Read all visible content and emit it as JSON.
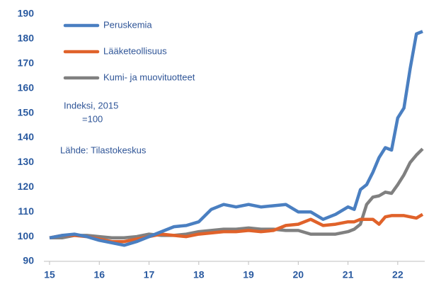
{
  "chart_data": {
    "type": "line",
    "annotations": [
      "Indeksi, 2015",
      "=100",
      "Lähde: Tilastokeskus"
    ],
    "x": [
      15,
      15.25,
      15.5,
      15.75,
      16,
      16.25,
      16.5,
      16.75,
      17,
      17.25,
      17.5,
      17.75,
      18,
      18.25,
      18.5,
      18.75,
      19,
      19.25,
      19.5,
      19.75,
      20,
      20.25,
      20.5,
      20.75,
      21,
      21.125,
      21.25,
      21.375,
      21.5,
      21.625,
      21.75,
      21.875,
      22,
      22.125,
      22.25,
      22.375,
      22.5
    ],
    "series": [
      {
        "name": "Peruskemia",
        "color": "#4a7fc1",
        "values": [
          99.5,
          100.5,
          101,
          100,
          98.5,
          97.5,
          96.5,
          98,
          100,
          102,
          104,
          104.5,
          106,
          111,
          113,
          112,
          113,
          112,
          112.5,
          113,
          110,
          110,
          107,
          109,
          112,
          111,
          119,
          121,
          126,
          132,
          136,
          135,
          148,
          152,
          168,
          182,
          183
        ]
      },
      {
        "name": "Lääketeollisuus",
        "color": "#e0622a",
        "values": [
          99.5,
          100.5,
          100.5,
          100,
          99,
          98,
          98,
          99,
          100,
          101,
          100.5,
          100,
          101,
          101.5,
          102,
          102,
          102.5,
          102,
          102.5,
          104.5,
          105,
          107,
          104.5,
          105,
          106,
          106,
          107,
          107,
          107,
          105,
          108,
          108.5,
          108.5,
          108.5,
          108,
          107.5,
          109
        ]
      },
      {
        "name": "Kumi- ja muovituotteet",
        "color": "#808080",
        "values": [
          99.5,
          99.5,
          100.5,
          100.5,
          100,
          99.5,
          99.5,
          100,
          101,
          100.5,
          100.5,
          101,
          102,
          102.5,
          103,
          103,
          103.5,
          103,
          103,
          102.5,
          102.5,
          101,
          101,
          101,
          102,
          103,
          105,
          113,
          116,
          116.5,
          118,
          117.5,
          121,
          125,
          130,
          133,
          135.5
        ]
      }
    ],
    "xlim": [
      15,
      22.6
    ],
    "xticks": [
      15,
      16,
      17,
      18,
      19,
      20,
      21,
      22
    ],
    "ylim": [
      90,
      190
    ],
    "yticks": [
      90,
      100,
      110,
      120,
      130,
      140,
      150,
      160,
      170,
      180,
      190
    ],
    "grid": false
  }
}
